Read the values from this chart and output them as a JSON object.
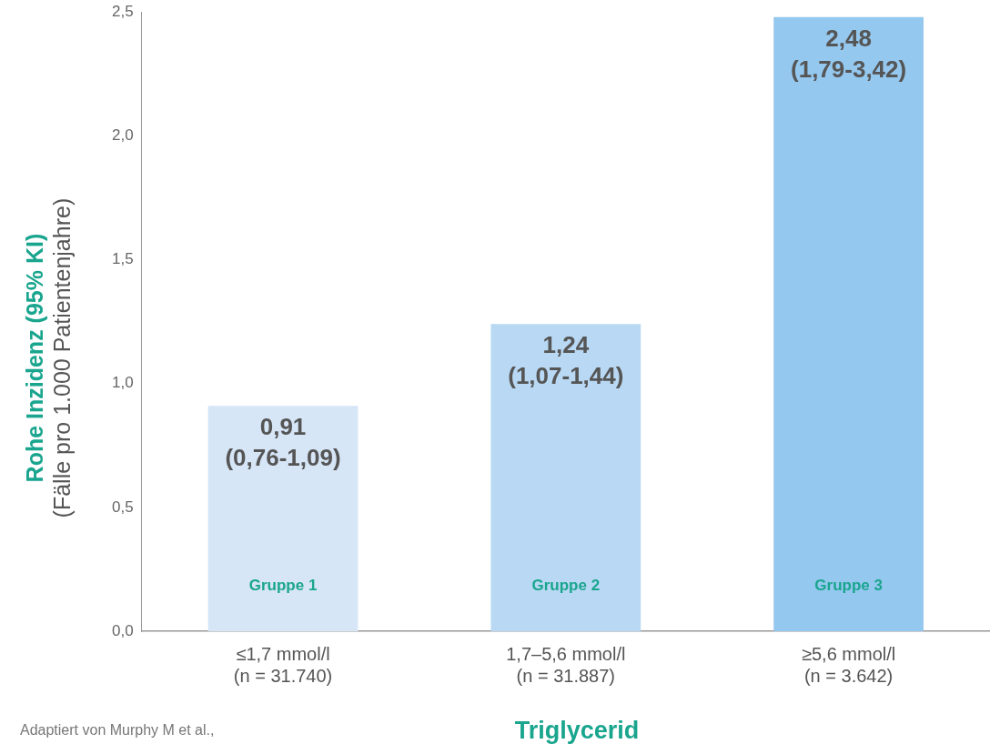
{
  "chart_data": {
    "type": "bar",
    "xlabel": "Triglycerid",
    "ylabel": "Rohe Inzidenz (95% KI)\n(Fälle pro 1.000 Patientenjahre)",
    "categories": [
      "≤1,7 mmol/l\n(n = 31.740)",
      "1,7–5,6 mmol/l\n(n = 31.887)",
      "≥5,6 mmol/l\n(n = 3.642)"
    ],
    "values": [
      0.91,
      1.24,
      2.48
    ],
    "colors": [
      "#d6e6f7",
      "#b8d8f3",
      "#95c8ef"
    ],
    "value_labels": [
      "0,91\n(0,76-1,09)",
      "1,24\n(1,07-1,44)",
      "2,48\n(1,79-3,42)"
    ],
    "ylim": [
      0,
      2.5
    ],
    "yticks": [
      {
        "value": 0,
        "label": "0,0"
      },
      {
        "value": 0.5,
        "label": "0,5"
      },
      {
        "value": 1,
        "label": "1,0"
      },
      {
        "value": 1.5,
        "label": "1,5"
      },
      {
        "value": 2,
        "label": "2,0"
      },
      {
        "value": 2.5,
        "label": "2,5"
      }
    ],
    "grid": false,
    "legend": false,
    "annotations": [
      "Gruppe 1",
      "Gruppe 2",
      "Gruppe 3",
      "Adaptiert von Murphy M et al.,"
    ]
  }
}
